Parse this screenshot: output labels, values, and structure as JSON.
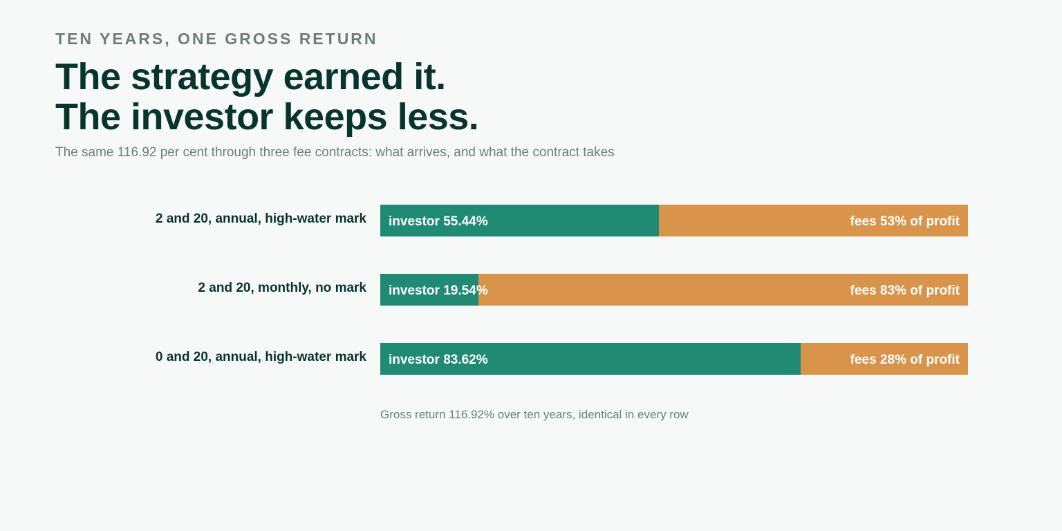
{
  "header": {
    "eyebrow": "TEN YEARS, ONE GROSS RETURN",
    "headline_line1": "The strategy earned it.",
    "headline_line2": "The investor keeps less.",
    "subtitle": "The same 116.92 per cent through three fee contracts: what arrives, and what the contract takes"
  },
  "footnote": "Gross return 116.92% over ten years, identical in every row",
  "colors": {
    "investor": "#208b72",
    "fees": "#d9944c"
  },
  "chart_data": {
    "type": "bar",
    "orientation": "horizontal",
    "stacked": true,
    "gross_return_percent": 116.92,
    "categories": [
      "2 and 20, annual, high-water mark",
      "2 and 20, monthly, no mark",
      "0 and 20, annual, high-water mark"
    ],
    "series": [
      {
        "key": "investor",
        "values": [
          55.44,
          19.54,
          83.62
        ]
      },
      {
        "key": "fees",
        "values": [
          53,
          83,
          28
        ]
      }
    ],
    "bar_labels": {
      "investor": [
        "investor 55.44%",
        "investor 19.54%",
        "investor 83.62%"
      ],
      "fees": [
        "fees 53% of profit",
        "fees 83% of profit",
        "fees 28% of profit"
      ]
    }
  }
}
